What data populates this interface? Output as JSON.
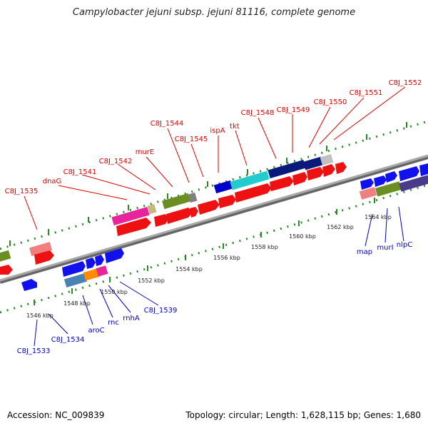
{
  "title": "Campylobacter jejuni subsp. jejuni 81116, complete genome",
  "footer": {
    "accession": "Accession: NC_009839",
    "stats": "Topology: circular; Length: 1,628,115 bp; Genes: 1,680"
  },
  "colors": {
    "upper_label": "#dd0000",
    "lower_label": "#0000bb",
    "tick_dots": "#2a8a2a",
    "backbone": "#888888"
  },
  "scale_ticks": [
    "1546 kbp",
    "1548 kbp",
    "1550 kbp",
    "1552 kbp",
    "1554 kbp",
    "1556 kbp",
    "1558 kbp",
    "1560 kbp",
    "1562 kbp",
    "1564 kbp"
  ],
  "upper_labels": [
    "C8J_1535",
    "dnaG",
    "C8J_1541",
    "C8J_1542",
    "murE",
    "C8J_1544",
    "C8J_1545",
    "ispA",
    "tkt",
    "C8J_1548",
    "C8J_1549",
    "C8J_1550",
    "C8J_1551",
    "C8J_1552"
  ],
  "lower_labels": [
    "C8J_1533",
    "C8J_1534",
    "aroC",
    "rnc",
    "rnhA",
    "C8J_1539",
    "map",
    "murI",
    "nlpC"
  ]
}
